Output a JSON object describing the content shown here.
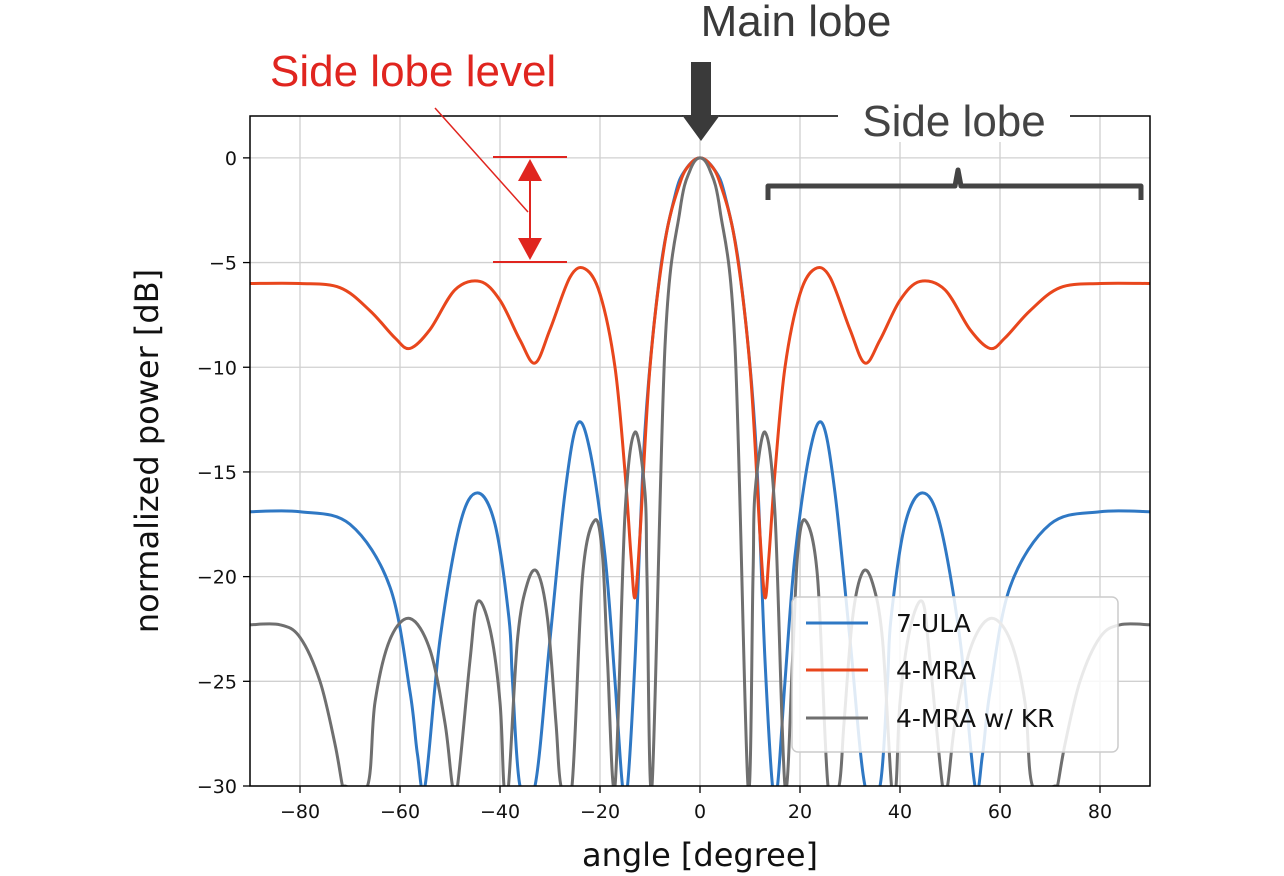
{
  "chart_data": {
    "type": "line",
    "title": "",
    "xlabel": "angle [degree]",
    "ylabel": "normalized power [dB]",
    "xlim": [
      -90,
      90
    ],
    "ylim": [
      -30,
      2
    ],
    "x_ticks": [
      -80,
      -60,
      -40,
      -20,
      0,
      20,
      40,
      60,
      80
    ],
    "x_tick_labels": [
      "−80",
      "−60",
      "−40",
      "−20",
      "0",
      "20",
      "40",
      "60",
      "80"
    ],
    "y_ticks": [
      0,
      -5,
      -10,
      -15,
      -20,
      -25,
      -30
    ],
    "y_tick_labels": [
      "0",
      "−5",
      "−10",
      "−15",
      "−20",
      "−25",
      "−30"
    ],
    "grid": true,
    "legend_position": "lower-right",
    "series": [
      {
        "name": "7-ULA",
        "color": "#2f78c4",
        "x": [
          -90,
          -80,
          -70,
          -62,
          -58,
          -56.5,
          -55,
          -52,
          -48,
          -44.5,
          -41,
          -38.2,
          -37.5,
          -36,
          -33,
          -30,
          -27,
          -24.5,
          -22,
          -19,
          -17,
          -15.5,
          -14.5,
          -13,
          -11,
          -8,
          -5,
          -3,
          0,
          3,
          5,
          8,
          11,
          13,
          14.5,
          15.5,
          17,
          19,
          22,
          24.5,
          27,
          30,
          33,
          36,
          37.5,
          38.2,
          41,
          44.5,
          48,
          52,
          55,
          56.5,
          58,
          62,
          70,
          80,
          90
        ],
        "y": [
          -16.9,
          -16.9,
          -17.5,
          -20.5,
          -25.5,
          -28.5,
          -30,
          -23,
          -17.5,
          -16,
          -17.5,
          -22,
          -25,
          -30,
          -30,
          -23,
          -16,
          -12.7,
          -14,
          -19,
          -25,
          -30,
          -30,
          -24,
          -13,
          -5.5,
          -1.8,
          -0.6,
          0,
          -0.6,
          -1.8,
          -5.5,
          -13,
          -24,
          -30,
          -30,
          -25,
          -19,
          -14,
          -12.7,
          -16,
          -23,
          -30,
          -30,
          -25,
          -22,
          -17.5,
          -16,
          -17.5,
          -23,
          -30,
          -28.5,
          -25.5,
          -20.5,
          -17.5,
          -16.9,
          -16.9
        ]
      },
      {
        "name": "4-MRA",
        "color": "#e8461c",
        "x": [
          -90,
          -80,
          -72,
          -66,
          -61,
          -58,
          -54,
          -49,
          -44,
          -40,
          -36,
          -33,
          -30,
          -26,
          -23,
          -20,
          -17,
          -15,
          -13.8,
          -13,
          -12,
          -10,
          -7,
          -4,
          -2,
          0,
          2,
          4,
          7,
          10,
          12,
          13,
          13.8,
          15,
          17,
          20,
          23,
          26,
          30,
          33,
          36,
          40,
          44,
          49,
          54,
          58,
          61,
          66,
          72,
          80,
          90
        ],
        "y": [
          -6,
          -6,
          -6.2,
          -7.3,
          -8.6,
          -9.1,
          -8.2,
          -6.3,
          -5.9,
          -6.8,
          -8.7,
          -9.8,
          -8.2,
          -5.7,
          -5.3,
          -6.5,
          -10,
          -15,
          -19,
          -21,
          -18,
          -10,
          -4,
          -1.2,
          -0.3,
          0,
          -0.3,
          -1.2,
          -4,
          -10,
          -18,
          -21,
          -19,
          -15,
          -10,
          -6.5,
          -5.3,
          -5.7,
          -8.2,
          -9.8,
          -8.7,
          -6.8,
          -5.9,
          -6.3,
          -8.2,
          -9.1,
          -8.6,
          -7.3,
          -6.2,
          -6,
          -6
        ]
      },
      {
        "name": "4-MRA w/ KR",
        "color": "#6f6f6f",
        "x": [
          -90,
          -84,
          -80,
          -76,
          -73,
          -71.5,
          -71,
          -66.5,
          -65,
          -62,
          -58,
          -54,
          -51,
          -49.5,
          -48.5,
          -46,
          -44.5,
          -42,
          -40,
          -39.2,
          -38.3,
          -36.5,
          -34.5,
          -32.5,
          -30.5,
          -28.8,
          -27.8,
          -25.6,
          -23.5,
          -21,
          -19.5,
          -18.5,
          -17,
          -15,
          -13,
          -11,
          -10.6,
          -9.6,
          -7,
          -4,
          -2,
          0,
          2,
          4,
          7,
          9.6,
          10.6,
          11,
          13,
          15,
          17,
          18.5,
          19.5,
          21,
          23.5,
          25.6,
          27.8,
          28.8,
          30.5,
          32.5,
          34.5,
          36.5,
          38.3,
          39.2,
          40,
          42,
          44.5,
          46,
          48.5,
          49.5,
          51,
          54,
          58,
          62,
          65,
          66.5,
          71,
          71.5,
          73,
          76,
          80,
          84,
          90
        ],
        "y": [
          -22.3,
          -22.3,
          -22.9,
          -25,
          -28,
          -30,
          -30,
          -30,
          -26,
          -23,
          -22,
          -23.5,
          -27,
          -30,
          -30,
          -24,
          -21.2,
          -22.5,
          -26,
          -30,
          -30,
          -23,
          -20.3,
          -19.8,
          -22,
          -27,
          -30,
          -30,
          -20,
          -17.3,
          -19,
          -24,
          -30,
          -17,
          -13.1,
          -16,
          -20,
          -30,
          -9,
          -2.5,
          -0.6,
          0,
          -0.6,
          -2.5,
          -9,
          -30,
          -20,
          -16,
          -13.1,
          -17,
          -30,
          -24,
          -19,
          -17.3,
          -20,
          -30,
          -30,
          -27,
          -22,
          -19.8,
          -20.3,
          -23,
          -30,
          -30,
          -26,
          -22.5,
          -21.2,
          -24,
          -30,
          -30,
          -27,
          -23.5,
          -22,
          -23,
          -26,
          -30,
          -30,
          -30,
          -28,
          -25,
          -22.9,
          -22.3,
          -22.3
        ]
      }
    ],
    "annotations": {
      "main_lobe": "Main lobe",
      "side_lobe_level": "Side lobe level",
      "side_lobe": "Side lobe",
      "main_lobe_color": "#3a3a3a",
      "side_lobe_level_color": "#e0251f",
      "side_lobe_color": "#444444"
    }
  }
}
